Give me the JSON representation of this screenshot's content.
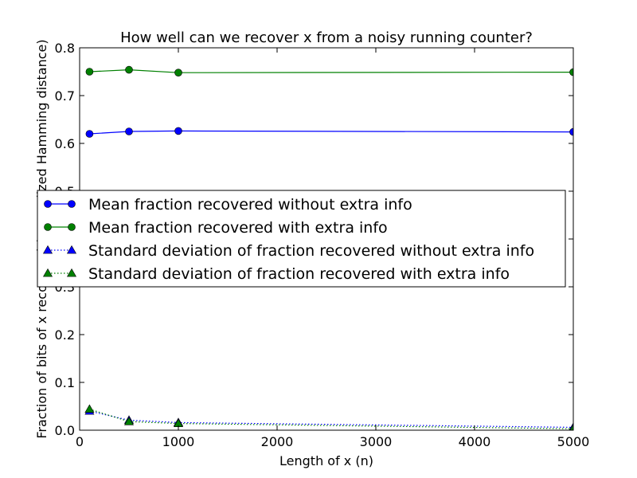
{
  "chart_data": {
    "type": "line",
    "title": "How well can we recover x from a noisy running counter?",
    "xlabel": "Length of x (n)",
    "ylabel": "Fraction of bits of x recovered (normalized Hamming distance)",
    "xlim": [
      0,
      5000
    ],
    "ylim": [
      0.0,
      0.8
    ],
    "xticks": [
      0,
      1000,
      2000,
      3000,
      4000,
      5000
    ],
    "xtick_labels": [
      "0",
      "1000",
      "2000",
      "3000",
      "4000",
      "5000"
    ],
    "yticks": [
      0.0,
      0.1,
      0.2,
      0.3,
      0.4,
      0.5,
      0.6,
      0.7,
      0.8
    ],
    "ytick_labels": [
      "0.0",
      "0.1",
      "0.2",
      "0.3",
      "0.4",
      "0.5",
      "0.6",
      "0.7",
      "0.8"
    ],
    "grid": false,
    "legend_position": "center",
    "series": [
      {
        "name": "Mean fraction recovered without extra info",
        "color": "#0000ff",
        "marker": "circle",
        "linestyle": "solid",
        "x": [
          100,
          500,
          1000,
          5000
        ],
        "y": [
          0.62,
          0.625,
          0.626,
          0.624
        ]
      },
      {
        "name": "Mean fraction recovered with extra info",
        "color": "#008000",
        "marker": "circle",
        "linestyle": "solid",
        "x": [
          100,
          500,
          1000,
          5000
        ],
        "y": [
          0.75,
          0.754,
          0.748,
          0.749
        ]
      },
      {
        "name": "Standard deviation of fraction recovered without extra info",
        "color": "#0000ff",
        "marker": "triangle",
        "linestyle": "dotted",
        "x": [
          100,
          500,
          1000,
          5000
        ],
        "y": [
          0.04,
          0.021,
          0.016,
          0.006
        ]
      },
      {
        "name": "Standard deviation of fraction recovered with extra info",
        "color": "#008000",
        "marker": "triangle",
        "linestyle": "dotted",
        "x": [
          100,
          500,
          1000,
          5000
        ],
        "y": [
          0.044,
          0.018,
          0.014,
          0.003
        ]
      }
    ]
  }
}
